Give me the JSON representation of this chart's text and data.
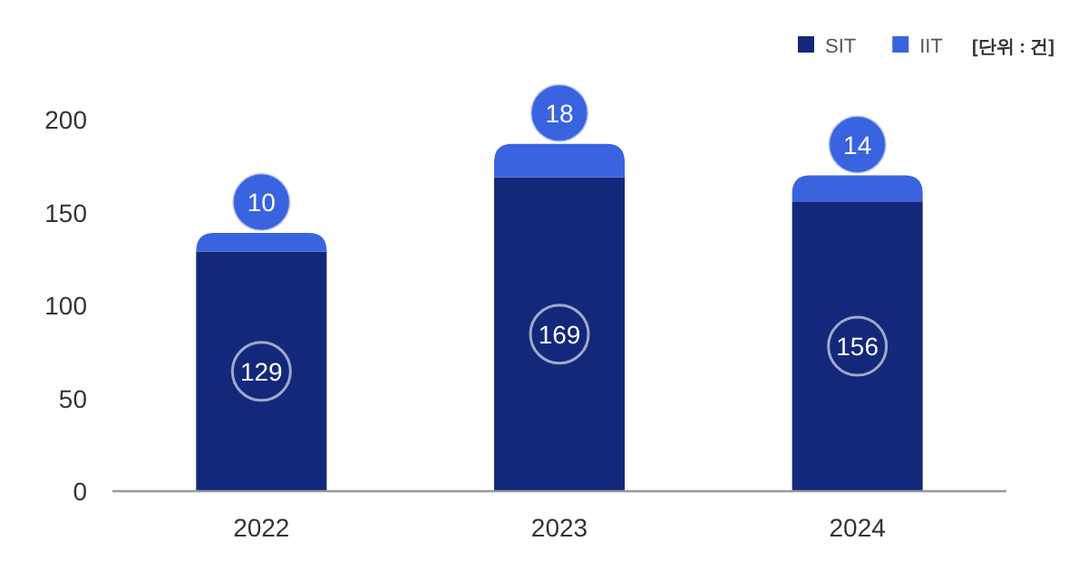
{
  "chart_data": {
    "type": "bar",
    "stacked": true,
    "categories": [
      "2022",
      "2023",
      "2024"
    ],
    "series": [
      {
        "name": "SIT",
        "color": "#13287a",
        "values": [
          129,
          169,
          156
        ]
      },
      {
        "name": "IIT",
        "color": "#3a63e0",
        "values": [
          10,
          18,
          14
        ]
      }
    ],
    "ylim": [
      0,
      200
    ],
    "yticks": [
      0,
      50,
      100,
      150,
      200
    ],
    "grid": false,
    "legend": "top right",
    "data_labels": true,
    "annotations": [
      "[단위 : 건]"
    ]
  }
}
